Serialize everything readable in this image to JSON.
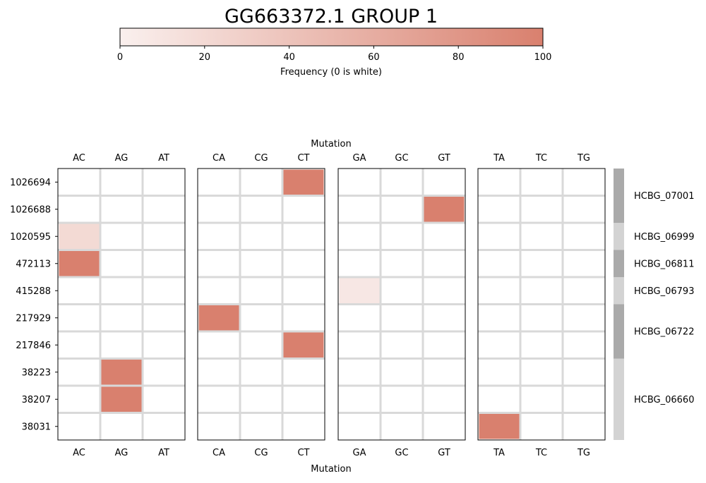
{
  "chart_data": {
    "type": "heatmap",
    "title": "GG663372.1 GROUP 1",
    "colorbar": {
      "label": "Frequency (0 is white)",
      "range": [
        0,
        100
      ],
      "ticks": [
        "0",
        "20",
        "40",
        "60",
        "80",
        "100"
      ],
      "color_low": "#faf0ee",
      "color_high": "#d9806e",
      "zero_color": "#ffffff"
    },
    "xlabel_top": "Mutation",
    "xlabel_bottom": "Mutation",
    "rows": [
      "1026694",
      "1026688",
      "1020595",
      "472113",
      "415288",
      "217929",
      "217846",
      "38223",
      "38207",
      "38031"
    ],
    "panels": [
      {
        "columns": [
          "AC",
          "AG",
          "AT"
        ]
      },
      {
        "columns": [
          "CA",
          "CG",
          "CT"
        ]
      },
      {
        "columns": [
          "GA",
          "GC",
          "GT"
        ]
      },
      {
        "columns": [
          "TA",
          "TC",
          "TG"
        ]
      }
    ],
    "cells": [
      {
        "row": "1026694",
        "column": "CT",
        "value": 100
      },
      {
        "row": "1026688",
        "column": "GT",
        "value": 100
      },
      {
        "row": "1020595",
        "column": "AC",
        "value": 20
      },
      {
        "row": "472113",
        "column": "AC",
        "value": 100
      },
      {
        "row": "415288",
        "column": "GA",
        "value": 8
      },
      {
        "row": "217929",
        "column": "CA",
        "value": 100
      },
      {
        "row": "217846",
        "column": "CT",
        "value": 100
      },
      {
        "row": "38223",
        "column": "AG",
        "value": 100
      },
      {
        "row": "38207",
        "column": "AG",
        "value": 100
      },
      {
        "row": "38031",
        "column": "TA",
        "value": 100
      }
    ],
    "groups": [
      {
        "label": "HCBG_07001",
        "start": 0,
        "end": 2,
        "color": "#aaaaaa"
      },
      {
        "label": "HCBG_06999",
        "start": 2,
        "end": 3,
        "color": "#d3d3d3"
      },
      {
        "label": "HCBG_06811",
        "start": 3,
        "end": 4,
        "color": "#aaaaaa"
      },
      {
        "label": "HCBG_06793",
        "start": 4,
        "end": 5,
        "color": "#d3d3d3"
      },
      {
        "label": "HCBG_06722",
        "start": 5,
        "end": 7,
        "color": "#aaaaaa"
      },
      {
        "label": "HCBG_06660",
        "start": 7,
        "end": 10,
        "color": "#d3d3d3"
      }
    ],
    "grid_color": "#d9d9d9"
  }
}
